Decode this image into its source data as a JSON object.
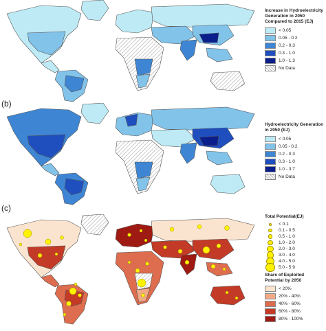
{
  "panels": [
    {
      "label": "",
      "legend_title": "Increase in Hydroelectricity Generation in 2050 Compared to 2015 (EJ)",
      "classes": [
        {
          "label": "< 0.05",
          "color": "#bdeaf5"
        },
        {
          "label": "0.05 - 0.2",
          "color": "#82c3ea"
        },
        {
          "label": "0.2 - 0.3",
          "color": "#3e86d4"
        },
        {
          "label": "0.3 - 1.0",
          "color": "#1f4fbf"
        },
        {
          "label": "1.0 - 1.3",
          "color": "#0a1f8c"
        },
        {
          "label": "No Data",
          "color": "hatch"
        }
      ]
    },
    {
      "label": "(b)",
      "legend_title": "Hydroelectricity Generation in 2050 (EJ)",
      "classes": [
        {
          "label": "< 0.05",
          "color": "#bdeaf5"
        },
        {
          "label": "0.05 - 0.2",
          "color": "#82c3ea"
        },
        {
          "label": "0.2 - 0.3",
          "color": "#3e86d4"
        },
        {
          "label": "0.3 - 1.0",
          "color": "#1f4fbf"
        },
        {
          "label": "1.0 - 3.7",
          "color": "#0a1f8c"
        },
        {
          "label": "No Data",
          "color": "hatch"
        }
      ]
    },
    {
      "label": "(c)",
      "potential_title": "Total Potential(EJ)",
      "potential_classes": [
        "< 0.1",
        "0.1 - 0.5",
        "0.5 - 1.0",
        "1.0 - 2.0",
        "2.0 - 3.0",
        "3.0 - 4.0",
        "4.0 - 5.0",
        "5.0 - 5.9"
      ],
      "share_title": "Share of Exploited Potential by 2050",
      "share_classes": [
        {
          "label": "< 20%",
          "color": "#fbe4cf"
        },
        {
          "label": "20% - 40%",
          "color": "#f1aa86"
        },
        {
          "label": "40% - 60%",
          "color": "#dd6d4e"
        },
        {
          "label": "60% - 80%",
          "color": "#c33a27"
        },
        {
          "label": "80% - 100%",
          "color": "#9e1a13"
        }
      ]
    }
  ],
  "colors": {
    "ocean": "#ffffff",
    "outline": "#555555",
    "point": "#fff200"
  }
}
